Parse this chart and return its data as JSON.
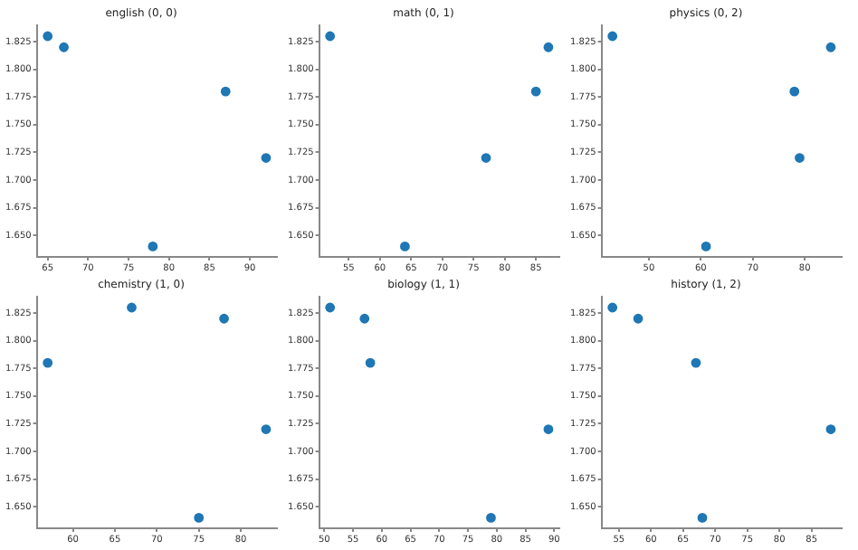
{
  "chart_data": [
    {
      "type": "scatter",
      "title": "english (0, 0)",
      "x": [
        65,
        67,
        78,
        87,
        92
      ],
      "values": [
        1.83,
        1.82,
        1.64,
        1.78,
        1.72
      ],
      "color": "#1f77b4",
      "marker": "circle",
      "xlim": [
        63.65,
        93.35
      ],
      "xticks": [
        65,
        70,
        75,
        80,
        85,
        90
      ],
      "ylim": [
        1.6305,
        1.8395
      ],
      "yticks": [
        {
          "value": 1.65,
          "label": "1.650"
        },
        {
          "value": 1.675,
          "label": "1.675"
        },
        {
          "value": 1.7,
          "label": "1.700"
        },
        {
          "value": 1.725,
          "label": "1.725"
        },
        {
          "value": 1.75,
          "label": "1.750"
        },
        {
          "value": 1.775,
          "label": "1.775"
        },
        {
          "value": 1.8,
          "label": "1.800"
        },
        {
          "value": 1.825,
          "label": "1.825"
        }
      ],
      "grid": false,
      "legend": false
    },
    {
      "type": "scatter",
      "title": "math (0, 1)",
      "x": [
        52,
        64,
        77,
        85,
        87
      ],
      "values": [
        1.83,
        1.64,
        1.72,
        1.78,
        1.82
      ],
      "color": "#1f77b4",
      "marker": "circle",
      "xlim": [
        50.25,
        88.75
      ],
      "xticks": [
        55,
        60,
        65,
        70,
        75,
        80,
        85
      ],
      "ylim": [
        1.6305,
        1.8395
      ],
      "yticks": [
        {
          "value": 1.65,
          "label": "1.650"
        },
        {
          "value": 1.675,
          "label": "1.675"
        },
        {
          "value": 1.7,
          "label": "1.700"
        },
        {
          "value": 1.725,
          "label": "1.725"
        },
        {
          "value": 1.75,
          "label": "1.750"
        },
        {
          "value": 1.775,
          "label": "1.775"
        },
        {
          "value": 1.8,
          "label": "1.800"
        },
        {
          "value": 1.825,
          "label": "1.825"
        }
      ],
      "grid": false,
      "legend": false
    },
    {
      "type": "scatter",
      "title": "physics (0, 2)",
      "x": [
        43,
        61,
        78,
        79,
        85
      ],
      "values": [
        1.83,
        1.64,
        1.78,
        1.72,
        1.82
      ],
      "color": "#1f77b4",
      "marker": "circle",
      "xlim": [
        40.9,
        87.1
      ],
      "xticks": [
        50,
        60,
        70,
        80
      ],
      "ylim": [
        1.6305,
        1.8395
      ],
      "yticks": [
        {
          "value": 1.65,
          "label": "1.650"
        },
        {
          "value": 1.675,
          "label": "1.675"
        },
        {
          "value": 1.7,
          "label": "1.700"
        },
        {
          "value": 1.725,
          "label": "1.725"
        },
        {
          "value": 1.75,
          "label": "1.750"
        },
        {
          "value": 1.775,
          "label": "1.775"
        },
        {
          "value": 1.8,
          "label": "1.800"
        },
        {
          "value": 1.825,
          "label": "1.825"
        }
      ],
      "grid": false,
      "legend": false
    },
    {
      "type": "scatter",
      "title": "chemistry (1, 0)",
      "x": [
        57,
        67,
        75,
        78,
        83
      ],
      "values": [
        1.78,
        1.83,
        1.64,
        1.82,
        1.72
      ],
      "color": "#1f77b4",
      "marker": "circle",
      "xlim": [
        55.7,
        84.3
      ],
      "xticks": [
        60,
        65,
        70,
        75,
        80
      ],
      "ylim": [
        1.6305,
        1.8395
      ],
      "yticks": [
        {
          "value": 1.65,
          "label": "1.650"
        },
        {
          "value": 1.675,
          "label": "1.675"
        },
        {
          "value": 1.7,
          "label": "1.700"
        },
        {
          "value": 1.725,
          "label": "1.725"
        },
        {
          "value": 1.75,
          "label": "1.750"
        },
        {
          "value": 1.775,
          "label": "1.775"
        },
        {
          "value": 1.8,
          "label": "1.800"
        },
        {
          "value": 1.825,
          "label": "1.825"
        }
      ],
      "grid": false,
      "legend": false
    },
    {
      "type": "scatter",
      "title": "biology (1, 1)",
      "x": [
        51,
        57,
        58,
        79,
        89
      ],
      "values": [
        1.83,
        1.82,
        1.78,
        1.64,
        1.72
      ],
      "color": "#1f77b4",
      "marker": "circle",
      "xlim": [
        49.1,
        90.9
      ],
      "xticks": [
        50,
        55,
        60,
        65,
        70,
        75,
        80,
        85,
        90
      ],
      "ylim": [
        1.6305,
        1.8395
      ],
      "yticks": [
        {
          "value": 1.65,
          "label": "1.650"
        },
        {
          "value": 1.675,
          "label": "1.675"
        },
        {
          "value": 1.7,
          "label": "1.700"
        },
        {
          "value": 1.725,
          "label": "1.725"
        },
        {
          "value": 1.75,
          "label": "1.750"
        },
        {
          "value": 1.775,
          "label": "1.775"
        },
        {
          "value": 1.8,
          "label": "1.800"
        },
        {
          "value": 1.825,
          "label": "1.825"
        }
      ],
      "grid": false,
      "legend": false
    },
    {
      "type": "scatter",
      "title": "history (1, 2)",
      "x": [
        54,
        58,
        67,
        68,
        88
      ],
      "values": [
        1.83,
        1.82,
        1.78,
        1.64,
        1.72
      ],
      "color": "#1f77b4",
      "marker": "circle",
      "xlim": [
        52.3,
        89.7
      ],
      "xticks": [
        55,
        60,
        65,
        70,
        75,
        80,
        85
      ],
      "ylim": [
        1.6305,
        1.8395
      ],
      "yticks": [
        {
          "value": 1.65,
          "label": "1.650"
        },
        {
          "value": 1.675,
          "label": "1.675"
        },
        {
          "value": 1.7,
          "label": "1.700"
        },
        {
          "value": 1.725,
          "label": "1.725"
        },
        {
          "value": 1.75,
          "label": "1.750"
        },
        {
          "value": 1.775,
          "label": "1.775"
        },
        {
          "value": 1.8,
          "label": "1.800"
        },
        {
          "value": 1.825,
          "label": "1.825"
        }
      ],
      "grid": false,
      "legend": false
    }
  ]
}
